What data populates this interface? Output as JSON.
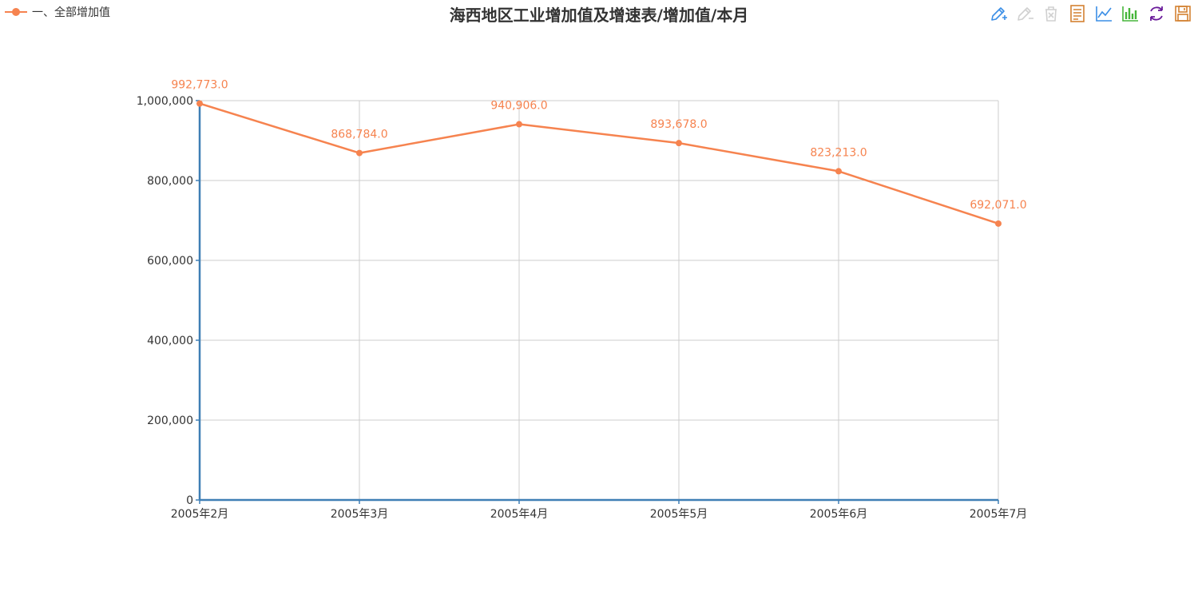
{
  "legend": {
    "label": "一、全部增加值",
    "color": "#f6834f"
  },
  "title": "海西地区工业增加值及增速表/增加值/本月",
  "toolbox": [
    {
      "name": "mark-icon",
      "color": "#3a8ee6"
    },
    {
      "name": "mark-undo-icon",
      "color": "#d0d0d0"
    },
    {
      "name": "mark-clear-icon",
      "color": "#d0d0d0"
    },
    {
      "name": "data-view-icon",
      "color": "#d38131"
    },
    {
      "name": "line-chart-icon",
      "color": "#3a8ee6"
    },
    {
      "name": "bar-chart-icon",
      "color": "#46b53a"
    },
    {
      "name": "restore-icon",
      "color": "#6a1b9a"
    },
    {
      "name": "save-image-icon",
      "color": "#d38131"
    }
  ],
  "chart_data": {
    "type": "line",
    "title": "海西地区工业增加值及增速表/增加值/本月",
    "categories": [
      "2005年2月",
      "2005年3月",
      "2005年4月",
      "2005年5月",
      "2005年6月",
      "2005年7月"
    ],
    "series": [
      {
        "name": "一、全部增加值",
        "values": [
          992773.0,
          868784.0,
          940906.0,
          893678.0,
          823213.0,
          692071.0
        ],
        "data_labels": [
          "992,773.0",
          "868,784.0",
          "940,906.0",
          "893,678.0",
          "823,213.0",
          "692,071.0"
        ]
      }
    ],
    "ylim": [
      0,
      1000000
    ],
    "yticks": [
      0,
      200000,
      400000,
      600000,
      800000,
      1000000
    ],
    "ytick_labels": [
      "0",
      "200,000",
      "400,000",
      "600,000",
      "800,000",
      "1,000,000"
    ],
    "xlabel": "",
    "ylabel": "",
    "grid": true,
    "legend_position": "top-left",
    "colors": {
      "series": "#f6834f",
      "axis": "#3f7fb5",
      "grid": "#cccccc",
      "tick_text": "#333333"
    }
  }
}
